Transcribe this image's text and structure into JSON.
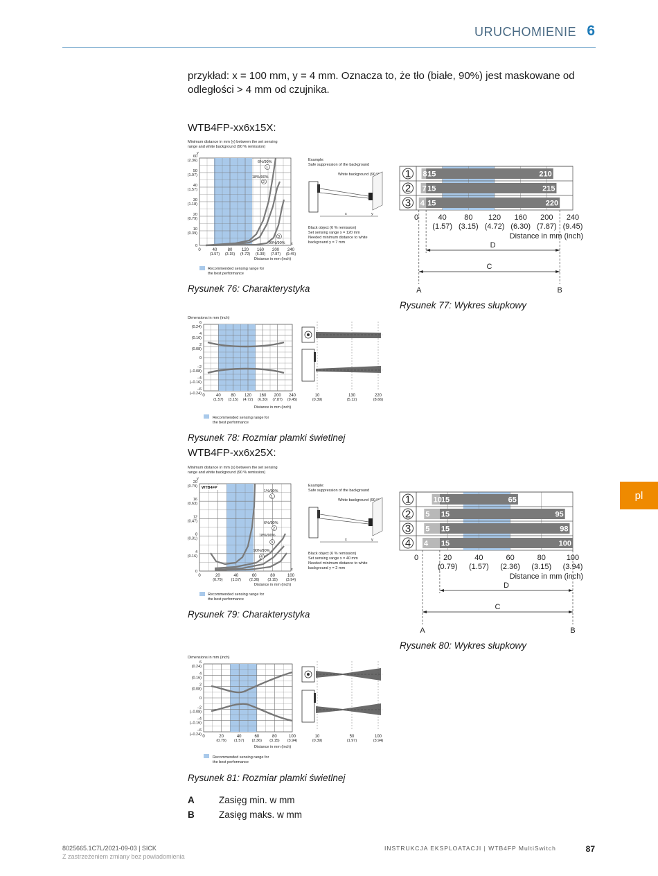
{
  "header": {
    "title": "URUCHOMIENIE",
    "chapter": "6"
  },
  "intro_text": "przykład: x = 100 mm, y = 4 mm. Oznacza to, że tło (białe, 90%) jest maskowane od odległości > 4 mm od czujnika.",
  "section1": {
    "title": "WTB4FP-xx6x15X:",
    "fig76": {
      "caption": "Rysunek 76: Charakterystyka",
      "chart_title": "Minimum distance in mm (y) between the set sensing range and white background (90 % remission)",
      "y_ticks": [
        [
          "60",
          "(2.36)"
        ],
        [
          "50",
          "(1.97)"
        ],
        [
          "40",
          "(1.57)"
        ],
        [
          "30",
          "(1.18)"
        ],
        [
          "20",
          "(0.79)"
        ],
        [
          "10",
          "(0.39)"
        ],
        [
          "0",
          ""
        ]
      ],
      "x_ticks": [
        [
          "0",
          ""
        ],
        [
          "40",
          "(1.57)"
        ],
        [
          "80",
          "(3.15)"
        ],
        [
          "120",
          "(4.72)"
        ],
        [
          "160",
          "(6.30)"
        ],
        [
          "200",
          "(7.87)"
        ],
        [
          "240",
          "(9.45)"
        ]
      ],
      "xlabel": "Distance in mm (inch)",
      "curve_labels": [
        "6%/90%",
        "18%/90%",
        "90%/90%"
      ],
      "markers": [
        "1",
        "2",
        "3"
      ],
      "legend": "Recommended sensing range for the best performance",
      "example_title": "Example:",
      "example_sub": "Safe suppression of the background",
      "white_bg": "White background (90 %)",
      "example_notes": [
        "Black object (6 % remission)",
        "Set sensing range x = 120 mm",
        "Needed minimum distance to white",
        "background y = 7 mm"
      ]
    },
    "fig77": {
      "caption": "Rysunek 77: Wykres słupkowy",
      "rows": [
        {
          "marker": "1",
          "min": "8",
          "start": "15",
          "end": "210"
        },
        {
          "marker": "2",
          "min": "7",
          "start": "15",
          "end": "215"
        },
        {
          "marker": "3",
          "min": "4",
          "start": "15",
          "end": "220"
        }
      ],
      "x_ticks": [
        [
          "0",
          ""
        ],
        [
          "40",
          "(1.57)"
        ],
        [
          "80",
          "(3.15)"
        ],
        [
          "120",
          "(4.72)"
        ],
        [
          "160",
          "(6.30)"
        ],
        [
          "200",
          "(7.87)"
        ],
        [
          "240",
          "(9.45)"
        ]
      ],
      "xlabel": "Distance in mm (inch)",
      "dim_d": "D",
      "dim_c": "C",
      "label_a": "A",
      "label_b": "B"
    },
    "fig78": {
      "caption": "Rysunek 78: Rozmiar plamki świetlnej",
      "chart_title": "Dimensions in mm (inch)",
      "y_ticks": [
        [
          "6",
          "(0.24)"
        ],
        [
          "4",
          "(0.16)"
        ],
        [
          "2",
          "(0.08)"
        ],
        [
          "0",
          ""
        ],
        [
          "–2",
          "(–0.08)"
        ],
        [
          "–4",
          "(–0.16)"
        ],
        [
          "–6",
          "(–0.24)"
        ]
      ],
      "x_ticks": [
        [
          "0",
          ""
        ],
        [
          "40",
          "(1.57)"
        ],
        [
          "80",
          "(3.15)"
        ],
        [
          "120",
          "(4.72)"
        ],
        [
          "160",
          "(6.30)"
        ],
        [
          "200",
          "(7.87)"
        ],
        [
          "240",
          "(9.45)"
        ]
      ],
      "right_ticks": [
        [
          "10",
          "(0.39)"
        ],
        [
          "130",
          "(5.12)"
        ],
        [
          "220",
          "(8.66)"
        ]
      ],
      "xlabel": "Distance in mm (inch)",
      "legend": "Recommended sensing range for the best performance"
    }
  },
  "section2": {
    "title": "WTB4FP-xx6x25X:",
    "fig79": {
      "caption": "Rysunek 79: Charakterystyka",
      "chart_title": "Minimum distance in mm (y) between the set sensing range and white background (90 % remission)",
      "badge": "WTB4FP",
      "y_ticks": [
        [
          "20",
          "(0.79)"
        ],
        [
          "16",
          "(0.63)"
        ],
        [
          "12",
          "(0.47)"
        ],
        [
          "8",
          "(0.31)"
        ],
        [
          "4",
          "(0.16)"
        ],
        [
          "0",
          ""
        ]
      ],
      "x_ticks": [
        [
          "0",
          ""
        ],
        [
          "20",
          "(0.79)"
        ],
        [
          "40",
          "(1.57)"
        ],
        [
          "60",
          "(2.36)"
        ],
        [
          "80",
          "(3.15)"
        ],
        [
          "100",
          "(3.94)"
        ]
      ],
      "xlabel": "Distance in mm (inch)",
      "curve_labels": [
        "1%/90%",
        "6%/90%",
        "18%/90%",
        "90%/90%"
      ],
      "markers": [
        "1",
        "2",
        "3",
        "4"
      ],
      "legend": "Recommended sensing range for the best performance",
      "example_title": "Example:",
      "example_sub": "Safe suppression of the background",
      "white_bg": "White background (90 %)",
      "example_notes": [
        "Black object (6 % remission)",
        "Set sensing range x = 40 mm",
        "Needed minimum distance to white",
        "background y = 2 mm"
      ]
    },
    "fig80": {
      "caption": "Rysunek 80: Wykres słupkowy",
      "rows": [
        {
          "marker": "1",
          "min": "10",
          "start": "15",
          "end": "65"
        },
        {
          "marker": "2",
          "min": "5",
          "start": "15",
          "end": "95"
        },
        {
          "marker": "3",
          "min": "5",
          "start": "15",
          "end": "98"
        },
        {
          "marker": "4",
          "min": "4",
          "start": "15",
          "end": "100"
        }
      ],
      "x_ticks": [
        [
          "0",
          ""
        ],
        [
          "20",
          "(0.79)"
        ],
        [
          "40",
          "(1.57)"
        ],
        [
          "60",
          "(2.36)"
        ],
        [
          "80",
          "(3.15)"
        ],
        [
          "100",
          "(3.94)"
        ]
      ],
      "xlabel": "Distance in mm (inch)",
      "dim_d": "D",
      "dim_c": "C",
      "label_a": "A",
      "label_b": "B"
    },
    "fig81": {
      "caption": "Rysunek 81: Rozmiar plamki świetlnej",
      "chart_title": "Dimensions in mm (inch)",
      "y_ticks": [
        [
          "6",
          "(0.24)"
        ],
        [
          "4",
          "(0.16)"
        ],
        [
          "2",
          "(0.08)"
        ],
        [
          "0",
          ""
        ],
        [
          "–2",
          "(–0.08)"
        ],
        [
          "–4",
          "(–0.16)"
        ],
        [
          "–6",
          "(–0.24)"
        ]
      ],
      "x_ticks": [
        [
          "0",
          ""
        ],
        [
          "20",
          "(0.79)"
        ],
        [
          "40",
          "(1.57)"
        ],
        [
          "60",
          "(2.36)"
        ],
        [
          "80",
          "(3.15)"
        ],
        [
          "100",
          "(3.94)"
        ]
      ],
      "right_ticks": [
        [
          "10",
          "(0.39)"
        ],
        [
          "50",
          "(1.97)"
        ],
        [
          "100",
          "(3.94)"
        ]
      ],
      "xlabel": "Distance in mm (inch)",
      "legend": "Recommended sensing range for the best performance"
    }
  },
  "legend_items": [
    {
      "key": "A",
      "text": "Zasięg min. w mm"
    },
    {
      "key": "B",
      "text": "Zasięg maks. w mm"
    }
  ],
  "lang_tab": "pl",
  "footer": {
    "doc_id": "8025665.1C7L/2021-09-03 | SICK",
    "notice": "Z zastrzeżeniem zmiany bez powiadomienia",
    "center": "INSTRUKCJA EKSPLOATACJI | WTB4FP MultiSwitch",
    "page": "87"
  },
  "colors": {
    "accent": "#1d7ab8",
    "tab": "#ef8a00",
    "range": "#a9c9ea",
    "bar": "#7a7a7a"
  }
}
